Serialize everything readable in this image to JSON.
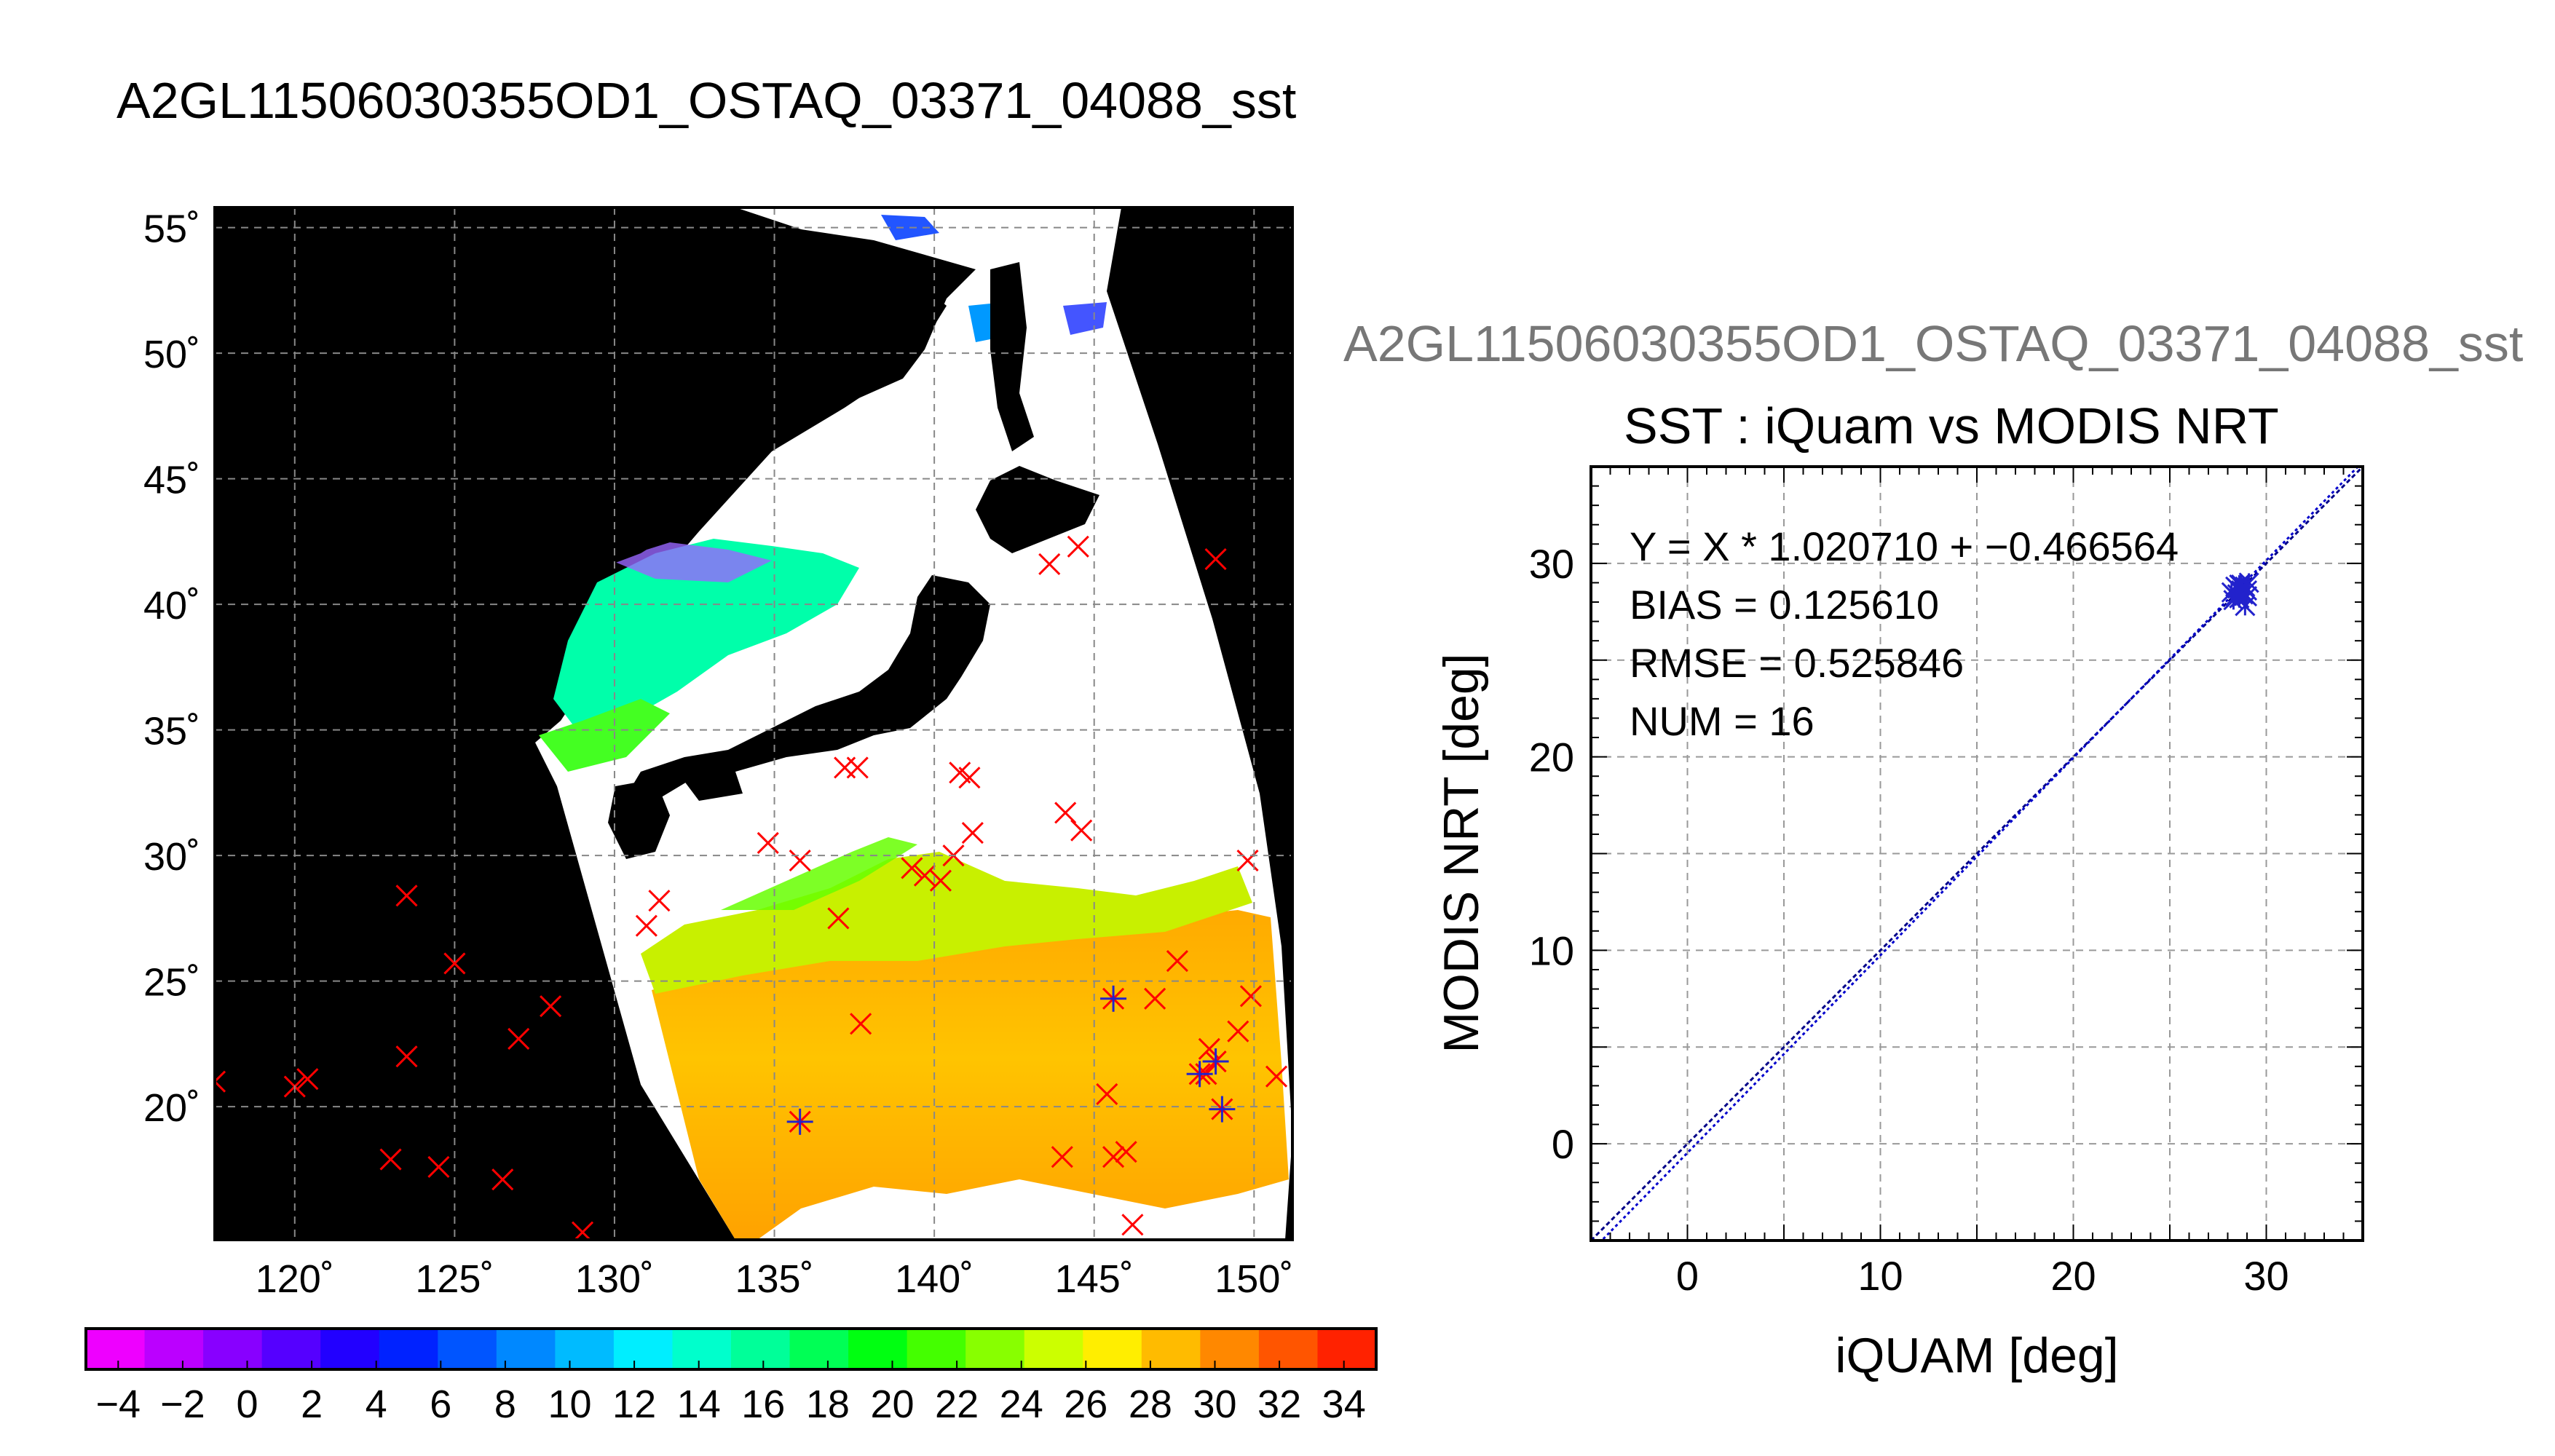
{
  "figure": {
    "title": "A2GL11506030355OD1_OSTAQ_03371_04088_sst",
    "subtitle": "A2GL11506030355OD1_OSTAQ_03371_04088_sst"
  },
  "colors": {
    "land": "#000000",
    "cloud": "#ffffff",
    "insitu_marker": "#ff0000",
    "matchup_marker": "#2222cc",
    "fit_line": "#000088"
  },
  "chart_data": [
    {
      "type": "heatmap",
      "title": "",
      "xlabel": "",
      "ylabel": "",
      "xlim": [
        117.5,
        151.2
      ],
      "ylim": [
        14.7,
        55.8
      ],
      "grid": true,
      "x_ticks": [
        120,
        125,
        130,
        135,
        140,
        145,
        150
      ],
      "x_tick_labels": [
        "120˚",
        "125˚",
        "130˚",
        "135˚",
        "140˚",
        "145˚",
        "150˚"
      ],
      "y_ticks": [
        20,
        25,
        30,
        35,
        40,
        45,
        50,
        55
      ],
      "y_tick_labels": [
        "20˚",
        "25˚",
        "30˚",
        "35˚",
        "40˚",
        "45˚",
        "50˚",
        "55˚"
      ],
      "colorbar": {
        "min": -5,
        "max": 35,
        "step": 2,
        "tick_values": [
          -4,
          -2,
          0,
          2,
          4,
          6,
          8,
          10,
          12,
          14,
          16,
          18,
          20,
          22,
          24,
          26,
          28,
          30,
          32,
          34
        ],
        "tick_labels": [
          "−4",
          "−2",
          "0",
          "2",
          "4",
          "6",
          "8",
          "10",
          "12",
          "14",
          "16",
          "18",
          "20",
          "22",
          "24",
          "26",
          "28",
          "30",
          "32",
          "34"
        ],
        "colors": [
          "#ee00ff",
          "#bb00ff",
          "#8800ff",
          "#5500ff",
          "#2200ff",
          "#0022ff",
          "#0055ff",
          "#0088ff",
          "#00bbff",
          "#00eeff",
          "#00ffcc",
          "#00ff99",
          "#00ff55",
          "#00ff11",
          "#44ff00",
          "#88ff00",
          "#ccff00",
          "#ffee00",
          "#ffbb00",
          "#ff8800",
          "#ff5500",
          "#ff2200"
        ]
      },
      "series": [
        {
          "marker": "x",
          "color": "#ff0000",
          "points": [
            [
              117.5,
              21.0
            ],
            [
              120.0,
              20.8
            ],
            [
              120.4,
              21.1
            ],
            [
              123.5,
              28.4
            ],
            [
              123.5,
              22.0
            ],
            [
              123.0,
              17.9
            ],
            [
              124.5,
              17.6
            ],
            [
              125.0,
              25.7
            ],
            [
              126.5,
              17.1
            ],
            [
              127.0,
              22.7
            ],
            [
              128.0,
              24.0
            ],
            [
              129.0,
              15.0
            ],
            [
              131.0,
              27.2
            ],
            [
              131.4,
              28.2
            ],
            [
              134.8,
              30.5
            ],
            [
              135.8,
              29.8
            ],
            [
              137.0,
              27.5
            ],
            [
              137.2,
              33.5
            ],
            [
              137.6,
              33.5
            ],
            [
              137.7,
              23.3
            ],
            [
              139.3,
              29.5
            ],
            [
              139.7,
              29.2
            ],
            [
              140.2,
              29.0
            ],
            [
              140.6,
              30.0
            ],
            [
              140.8,
              33.3
            ],
            [
              141.1,
              33.1
            ],
            [
              141.2,
              30.9
            ],
            [
              143.6,
              41.6
            ],
            [
              144.1,
              31.7
            ],
            [
              144.0,
              18.0
            ],
            [
              144.5,
              42.3
            ],
            [
              144.6,
              31.0
            ],
            [
              145.4,
              20.5
            ],
            [
              145.6,
              18.0
            ],
            [
              146.0,
              18.2
            ],
            [
              146.2,
              15.3
            ],
            [
              146.9,
              24.3
            ],
            [
              147.6,
              25.8
            ],
            [
              148.5,
              21.3
            ],
            [
              148.6,
              22.3
            ],
            [
              148.8,
              41.8
            ],
            [
              149.5,
              23.0
            ],
            [
              149.9,
              24.4
            ],
            [
              149.8,
              29.8
            ],
            [
              150.7,
              21.2
            ]
          ]
        },
        {
          "marker": "asterisk",
          "color": "#2222cc",
          "points": [
            [
              135.8,
              19.4
            ],
            [
              145.6,
              24.3
            ],
            [
              148.3,
              21.3
            ],
            [
              148.8,
              21.8
            ],
            [
              149.0,
              19.9
            ]
          ]
        }
      ]
    },
    {
      "type": "scatter",
      "title": "SST : iQuam vs MODIS NRT",
      "xlabel": "iQUAM [deg]",
      "ylabel": "MODIS NRT [deg]",
      "xlim": [
        -5,
        35
      ],
      "ylim": [
        -5,
        35
      ],
      "grid": true,
      "x_ticks": [
        0,
        10,
        20,
        30
      ],
      "y_ticks": [
        0,
        10,
        20,
        30
      ],
      "annotations": [
        "Y = X * 1.020710 + −0.466564",
        "BIAS = 0.125610",
        "RMSE = 0.525846",
        "NUM = 16"
      ],
      "fit": {
        "slope": 1.02071,
        "intercept": -0.466564
      },
      "points": [
        [
          28.2,
          28.5
        ],
        [
          28.4,
          28.3
        ],
        [
          28.5,
          28.7
        ],
        [
          28.6,
          28.2
        ],
        [
          28.7,
          28.9
        ],
        [
          28.8,
          28.4
        ],
        [
          28.9,
          28.8
        ],
        [
          29.0,
          28.6
        ],
        [
          28.3,
          28.1
        ],
        [
          28.6,
          28.9
        ],
        [
          28.9,
          27.8
        ],
        [
          29.1,
          29.0
        ],
        [
          28.5,
          28.4
        ],
        [
          28.7,
          28.6
        ],
        [
          28.4,
          28.8
        ],
        [
          29.0,
          28.3
        ]
      ]
    }
  ]
}
